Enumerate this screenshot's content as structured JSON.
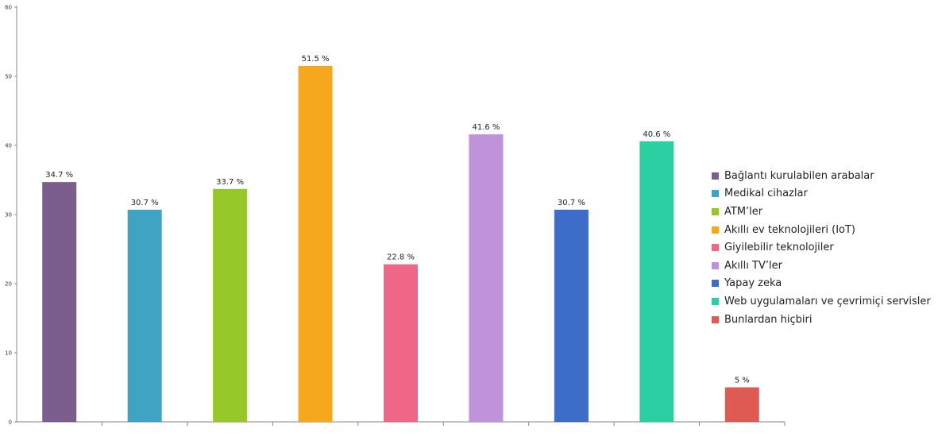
{
  "chart_data": {
    "type": "bar",
    "categories": [
      "Bağlantı kurulabilen arabalar",
      "Medikal cihazlar",
      "ATM’ler",
      "Akıllı ev teknolojileri (IoT)",
      "Giyilebilir teknolojiler",
      "Akıllı TV’ler",
      "Yapay zeka",
      "Web uygulamaları ve çevrimiçi servisler",
      "Bunlardan hiçbiri"
    ],
    "values": [
      34.7,
      30.7,
      33.7,
      51.5,
      22.8,
      41.6,
      30.7,
      40.6,
      5
    ],
    "data_labels": [
      "34.7 %",
      "30.7 %",
      "33.7 %",
      "51.5 %",
      "22.8 %",
      "41.6 %",
      "30.7 %",
      "40.6 %",
      "5 %"
    ],
    "colors": [
      "#7b5e8e",
      "#3fa3c4",
      "#96c82a",
      "#f5a81b",
      "#f06686",
      "#c092db",
      "#3d6dc9",
      "#2ad0a2",
      "#de5a52"
    ],
    "yticks": [
      "0",
      "10",
      "20",
      "30",
      "40",
      "50",
      "60"
    ],
    "ylim": [
      0,
      60
    ],
    "title": "",
    "xlabel": "",
    "ylabel": "",
    "grid": false,
    "legend_position": "right"
  }
}
